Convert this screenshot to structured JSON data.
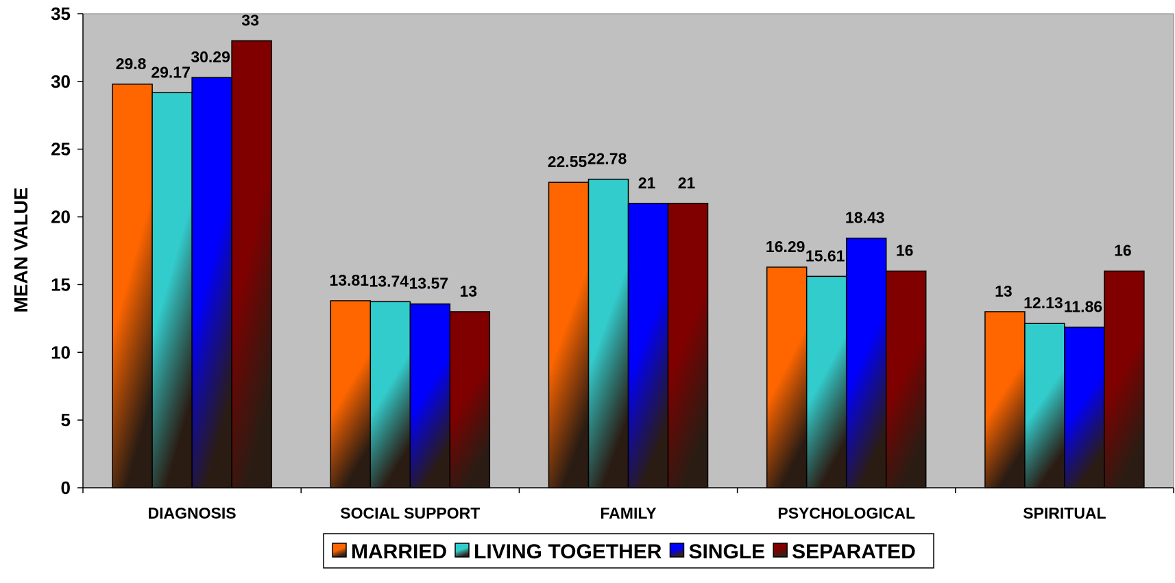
{
  "chart_data": {
    "type": "bar",
    "title": "",
    "xlabel": "",
    "ylabel": "MEAN VALUE",
    "ylim": [
      0,
      35
    ],
    "yticks": [
      0,
      5,
      10,
      15,
      20,
      25,
      30,
      35
    ],
    "grid": false,
    "legend_position": "bottom-center",
    "categories": [
      "DIAGNOSIS",
      "SOCIAL SUPPORT",
      "FAMILY",
      "PSYCHOLOGICAL",
      "SPIRITUAL"
    ],
    "series": [
      {
        "name": "MARRIED",
        "color": "#ff6600",
        "values": [
          29.8,
          13.81,
          22.55,
          16.29,
          13
        ],
        "labels": [
          "29.8",
          "13.81",
          "22.55",
          "16.29",
          "13"
        ]
      },
      {
        "name": "LIVING TOGETHER",
        "color": "#33cccc",
        "values": [
          29.17,
          13.74,
          22.78,
          15.61,
          12.13
        ],
        "labels": [
          "29.17",
          "13.74",
          "22.78",
          "15.61",
          "12.13"
        ]
      },
      {
        "name": "SINGLE",
        "color": "#0000ff",
        "values": [
          30.29,
          13.57,
          21,
          18.43,
          11.86
        ],
        "labels": [
          "30.29",
          "13.57",
          "21",
          "18.43",
          "11.86"
        ]
      },
      {
        "name": "SEPARATED",
        "color": "#800000",
        "values": [
          33,
          13,
          21,
          16,
          16
        ],
        "labels": [
          "33",
          "13",
          "21",
          "16",
          "16"
        ]
      }
    ],
    "plot_background": "#c0c0c0"
  }
}
